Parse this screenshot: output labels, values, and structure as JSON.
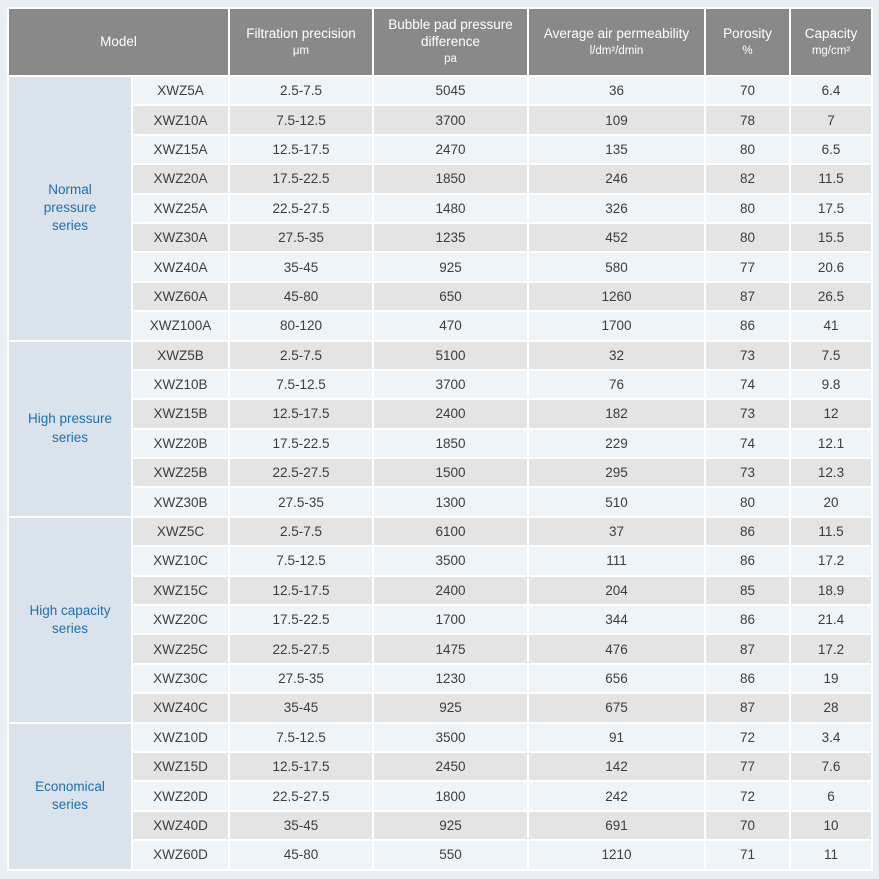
{
  "table": {
    "headers": [
      {
        "label": "Model",
        "unit": ""
      },
      {
        "label": "Filtration precision",
        "unit": "μm"
      },
      {
        "label": "Bubble pad pressure difference",
        "unit": "pa"
      },
      {
        "label": "Average air permeability",
        "unit": "l/dm²/dmin"
      },
      {
        "label": "Porosity",
        "unit": "%"
      },
      {
        "label": "Capacity",
        "unit": "mg/cm²"
      }
    ],
    "groups": [
      {
        "label": "Normal pressure series",
        "rows": [
          [
            "XWZ5A",
            "2.5-7.5",
            "5045",
            "36",
            "70",
            "6.4"
          ],
          [
            "XWZ10A",
            "7.5-12.5",
            "3700",
            "109",
            "78",
            "7"
          ],
          [
            "XWZ15A",
            "12.5-17.5",
            "2470",
            "135",
            "80",
            "6.5"
          ],
          [
            "XWZ20A",
            "17.5-22.5",
            "1850",
            "246",
            "82",
            "11.5"
          ],
          [
            "XWZ25A",
            "22.5-27.5",
            "1480",
            "326",
            "80",
            "17.5"
          ],
          [
            "XWZ30A",
            "27.5-35",
            "1235",
            "452",
            "80",
            "15.5"
          ],
          [
            "XWZ40A",
            "35-45",
            "925",
            "580",
            "77",
            "20.6"
          ],
          [
            "XWZ60A",
            "45-80",
            "650",
            "1260",
            "87",
            "26.5"
          ],
          [
            "XWZ100A",
            "80-120",
            "470",
            "1700",
            "86",
            "41"
          ]
        ]
      },
      {
        "label": "High pressure series",
        "rows": [
          [
            "XWZ5B",
            "2.5-7.5",
            "5100",
            "32",
            "73",
            "7.5"
          ],
          [
            "XWZ10B",
            "7.5-12.5",
            "3700",
            "76",
            "74",
            "9.8"
          ],
          [
            "XWZ15B",
            "12.5-17.5",
            "2400",
            "182",
            "73",
            "12"
          ],
          [
            "XWZ20B",
            "17.5-22.5",
            "1850",
            "229",
            "74",
            "12.1"
          ],
          [
            "XWZ25B",
            "22.5-27.5",
            "1500",
            "295",
            "73",
            "12.3"
          ],
          [
            "XWZ30B",
            "27.5-35",
            "1300",
            "510",
            "80",
            "20"
          ]
        ]
      },
      {
        "label": "High capacity series",
        "rows": [
          [
            "XWZ5C",
            "2.5-7.5",
            "6100",
            "37",
            "86",
            "11.5"
          ],
          [
            "XWZ10C",
            "7.5-12.5",
            "3500",
            "111",
            "86",
            "17.2"
          ],
          [
            "XWZ15C",
            "12.5-17.5",
            "2400",
            "204",
            "85",
            "18.9"
          ],
          [
            "XWZ20C",
            "17.5-22.5",
            "1700",
            "344",
            "86",
            "21.4"
          ],
          [
            "XWZ25C",
            "22.5-27.5",
            "1475",
            "476",
            "87",
            "17.2"
          ],
          [
            "XWZ30C",
            "27.5-35",
            "1230",
            "656",
            "86",
            "19"
          ],
          [
            "XWZ40C",
            "35-45",
            "925",
            "675",
            "87",
            "28"
          ]
        ]
      },
      {
        "label": "Economical series",
        "rows": [
          [
            "XWZ10D",
            "7.5-12.5",
            "3500",
            "91",
            "72",
            "3.4"
          ],
          [
            "XWZ15D",
            "12.5-17.5",
            "2450",
            "142",
            "77",
            "7.6"
          ],
          [
            "XWZ20D",
            "22.5-27.5",
            "1800",
            "242",
            "72",
            "6"
          ],
          [
            "XWZ40D",
            "35-45",
            "925",
            "691",
            "70",
            "10"
          ],
          [
            "XWZ60D",
            "45-80",
            "550",
            "1210",
            "71",
            "11"
          ]
        ]
      }
    ]
  },
  "colors": {
    "header_bg": "#898989",
    "header_text": "#ffffff",
    "group_bg": "#dae3ec",
    "group_text": "#1e6fae",
    "row_light": "#eff4f8",
    "row_dark": "#e4e4e4",
    "cell_text": "#3d3d3d",
    "page_bg": "#e9eff5",
    "grid_line": "#ffffff"
  }
}
